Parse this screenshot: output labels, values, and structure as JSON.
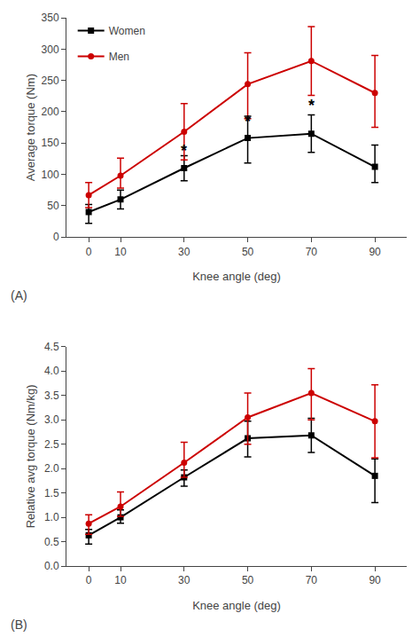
{
  "chart_data": [
    {
      "type": "line",
      "title": "(A)",
      "x": [
        0,
        10,
        30,
        50,
        70,
        90
      ],
      "xlabel": "Knee angle (deg)",
      "ylabel": "Average torque (Nm)",
      "xlim": [
        -7,
        100
      ],
      "xticks": [
        0,
        10,
        30,
        50,
        70,
        90
      ],
      "ylim": [
        0,
        350
      ],
      "yticks": [
        0,
        50,
        100,
        150,
        200,
        250,
        300,
        350
      ],
      "grid": false,
      "legend": "upper left",
      "series": [
        {
          "name": "Women",
          "color": "#000000",
          "marker": "square",
          "values": [
            40,
            60,
            110,
            158,
            165,
            112
          ],
          "err_low": [
            18,
            15,
            20,
            40,
            30,
            25
          ],
          "err_high": [
            12,
            15,
            20,
            35,
            30,
            35
          ]
        },
        {
          "name": "Men",
          "color": "#cc0000",
          "marker": "circle",
          "values": [
            67,
            98,
            168,
            244,
            281,
            230
          ],
          "err_low": [
            20,
            20,
            45,
            55,
            55,
            55
          ],
          "err_high": [
            20,
            28,
            45,
            50,
            55,
            60
          ]
        }
      ],
      "annotations": [
        {
          "text": "*",
          "x": 30,
          "y": 138
        },
        {
          "text": "*",
          "x": 50,
          "y": 185
        },
        {
          "text": "*",
          "x": 70,
          "y": 210
        }
      ]
    },
    {
      "type": "line",
      "title": "(B)",
      "x": [
        0,
        10,
        30,
        50,
        70,
        90
      ],
      "xlabel": "Knee angle (deg)",
      "ylabel": "Relative avg torque (Nm/kg)",
      "xlim": [
        -7,
        100
      ],
      "xticks": [
        0,
        10,
        30,
        50,
        70,
        90
      ],
      "ylim": [
        0.0,
        4.5
      ],
      "yticks": [
        {
          "value": 0.0,
          "label": "0.0"
        },
        {
          "value": 0.5,
          "label": "0.5"
        },
        {
          "value": 1.0,
          "label": "1.0"
        },
        {
          "value": 1.5,
          "label": "1.5"
        },
        {
          "value": 2.0,
          "label": "2.0"
        },
        {
          "value": 2.5,
          "label": "2.5"
        },
        {
          "value": 3.0,
          "label": "3.0"
        },
        {
          "value": 3.5,
          "label": "3.5"
        },
        {
          "value": 4.0,
          "label": "4.0"
        },
        {
          "value": 4.5,
          "label": "4.5"
        }
      ],
      "grid": false,
      "series": [
        {
          "name": "Women",
          "color": "#000000",
          "marker": "square",
          "values": [
            0.63,
            1.0,
            1.82,
            2.62,
            2.68,
            1.85
          ],
          "err_low": [
            0.18,
            0.12,
            0.18,
            0.38,
            0.35,
            0.55
          ],
          "err_high": [
            0.12,
            0.15,
            0.15,
            0.35,
            0.35,
            0.35
          ]
        },
        {
          "name": "Men",
          "color": "#cc0000",
          "marker": "circle",
          "values": [
            0.87,
            1.22,
            2.12,
            3.05,
            3.55,
            2.97
          ],
          "err_low": [
            0.22,
            0.2,
            0.3,
            0.55,
            0.55,
            0.75
          ],
          "err_high": [
            0.18,
            0.3,
            0.42,
            0.5,
            0.5,
            0.75
          ]
        }
      ]
    }
  ]
}
